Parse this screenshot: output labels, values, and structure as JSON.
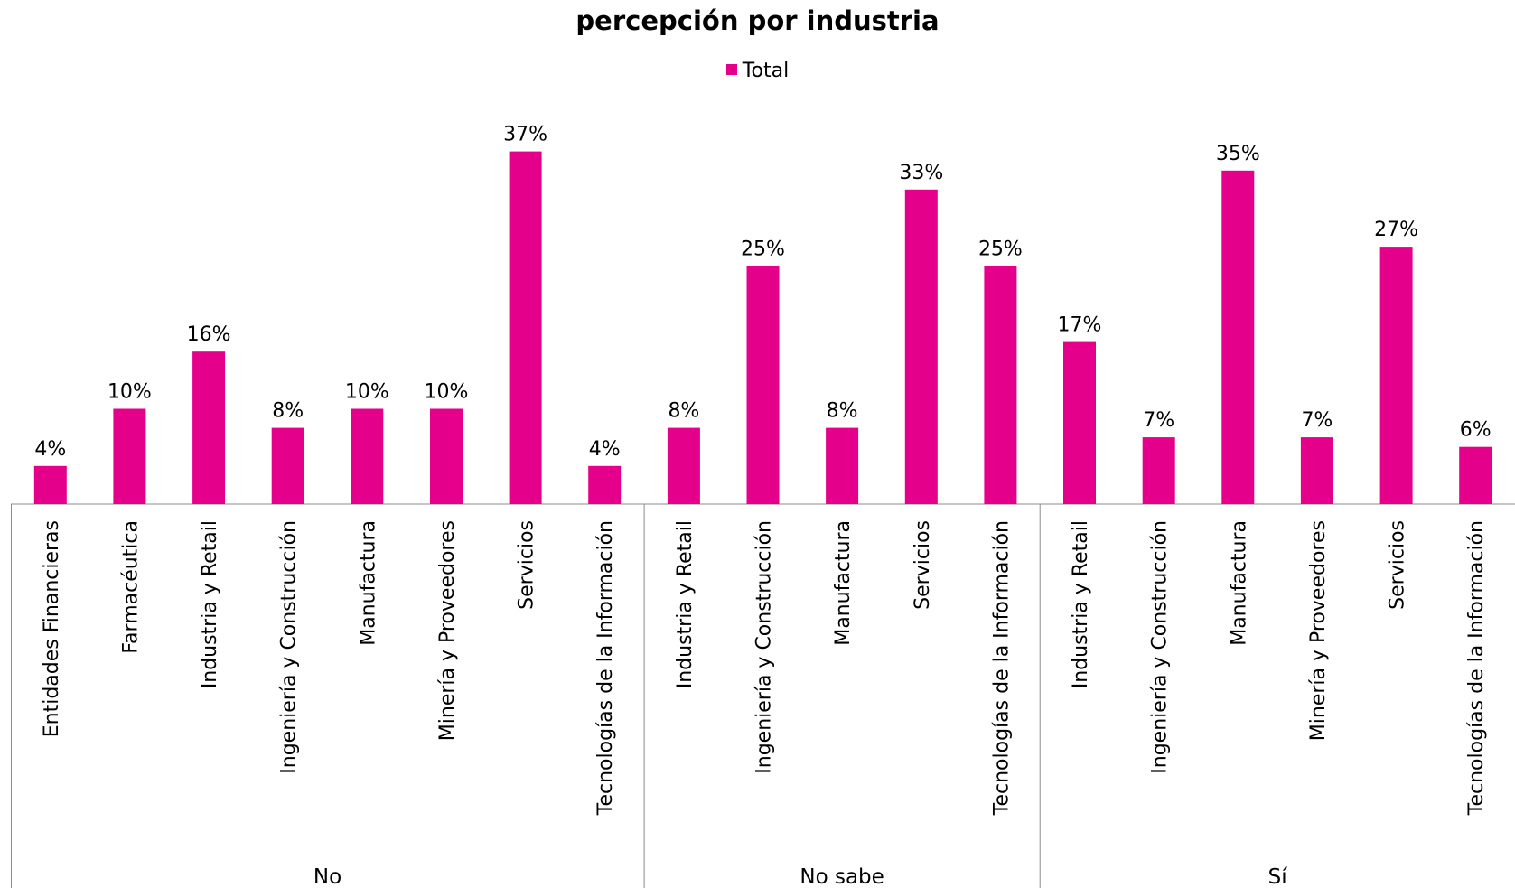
{
  "chart_data": {
    "type": "bar",
    "title": "percepción por industria",
    "series": [
      {
        "name": "Total",
        "color": "#E5008C"
      }
    ],
    "legend_position": "top",
    "grid": false,
    "ylim": [
      0,
      40
    ],
    "groups": [
      {
        "label": "No",
        "categories": [
          "Entidades Financieras",
          "Farmacéutica",
          "Industria y Retail",
          "Ingeniería y Construcción",
          "Manufactura",
          "Minería y Proveedores",
          "Servicios",
          "Tecnologías de la Información"
        ],
        "values": [
          4,
          10,
          16,
          8,
          10,
          10,
          37,
          4
        ],
        "labels": [
          "4%",
          "10%",
          "16%",
          "8%",
          "10%",
          "10%",
          "37%",
          "4%"
        ]
      },
      {
        "label": "No sabe",
        "categories": [
          "Industria y Retail",
          "Ingeniería y Construcción",
          "Manufactura",
          "Servicios",
          "Tecnologías de la Información"
        ],
        "values": [
          8,
          25,
          8,
          33,
          25
        ],
        "labels": [
          "8%",
          "25%",
          "8%",
          "33%",
          "25%"
        ]
      },
      {
        "label": "Sí",
        "categories": [
          "Industria y Retail",
          "Ingeniería y Construcción",
          "Manufactura",
          "Minería y Proveedores",
          "Servicios",
          "Tecnologías de la Información"
        ],
        "values": [
          17,
          7,
          35,
          7,
          27,
          6
        ],
        "labels": [
          "17%",
          "7%",
          "35%",
          "7%",
          "27%",
          "6%"
        ]
      }
    ]
  }
}
